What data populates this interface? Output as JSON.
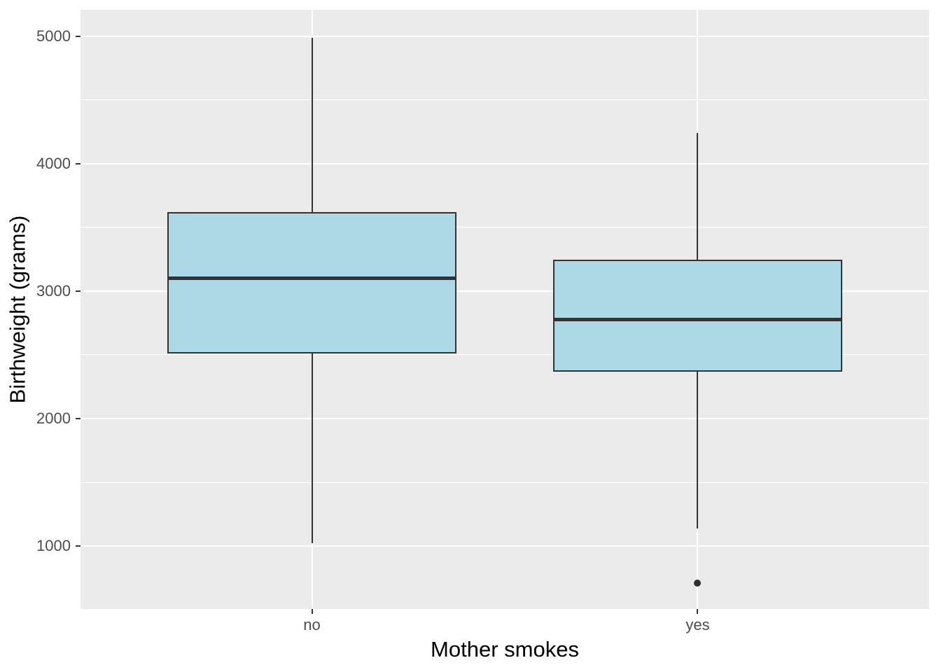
{
  "chart_data": {
    "type": "boxplot",
    "title": "",
    "xlabel": "Mother smokes",
    "ylabel": "Birthweight (grams)",
    "categories": [
      "no",
      "yes"
    ],
    "series": [
      {
        "category": "no",
        "whisker_low": 1021,
        "q1": 2509,
        "median": 3100,
        "q3": 3621,
        "whisker_high": 4990,
        "outliers": []
      },
      {
        "category": "yes",
        "whisker_low": 1135,
        "q1": 2370,
        "median": 2776,
        "q3": 3245,
        "whisker_high": 4238,
        "outliers": [
          709
        ]
      }
    ],
    "y_ticks": [
      1000,
      2000,
      3000,
      4000,
      5000
    ],
    "y_minor_ticks": [
      1500,
      2500,
      3500,
      4500
    ],
    "ylim": [
      506,
      5207
    ],
    "grid": true,
    "legend_position": "none"
  },
  "style": {
    "figure_bg": "#FFFFFF",
    "panel_bg": "#EBEBEB",
    "grid_color": "#FFFFFF",
    "box_fill": "#ADD8E6",
    "box_border": "#333333",
    "median_color": "#333333",
    "whisker_color": "#333333",
    "outlier_color": "#2F2F2F",
    "tick_mark_color": "#333333",
    "tick_label_color": "#4D4D4D",
    "axis_title_color": "#000000"
  }
}
